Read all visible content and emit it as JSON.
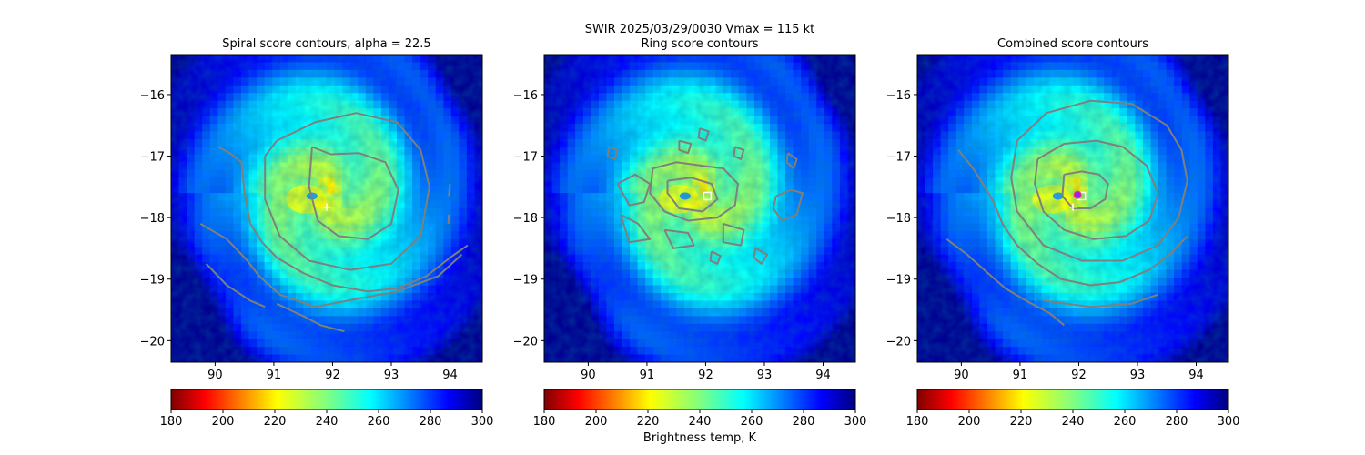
{
  "figure": {
    "suptitle_line1": "SWIR  2025/03/29/0030    Vmax = 115 kt",
    "colorbar_label": "Brightness temp, K"
  },
  "chart_data": [
    {
      "type": "heatmap",
      "title": "Spiral score contours, alpha = 22.5",
      "xlim": [
        89.25,
        94.55
      ],
      "ylim": [
        -20.35,
        -15.35
      ],
      "xticks": [
        90,
        91,
        92,
        93,
        94
      ],
      "yticks": [
        -16,
        -17,
        -18,
        -19,
        -20
      ],
      "colorbar": {
        "cmap": "jet",
        "reversed": true,
        "range": [
          180,
          300
        ],
        "ticks": [
          180,
          200,
          220,
          240,
          260,
          280,
          300
        ]
      },
      "field": {
        "eye_center": [
          91.9,
          -17.65
        ],
        "eye_temp": 225
      },
      "markers": [
        {
          "shape": "plus",
          "x": 91.9,
          "y": -17.83,
          "color": "#ffffff"
        }
      ],
      "contours": [
        [
          [
            91.65,
            -16.85
          ],
          [
            91.97,
            -16.97
          ],
          [
            92.45,
            -16.95
          ],
          [
            92.9,
            -17.1
          ],
          [
            93.12,
            -17.55
          ],
          [
            93.0,
            -18.1
          ],
          [
            92.6,
            -18.35
          ],
          [
            92.1,
            -18.3
          ],
          [
            91.75,
            -18.05
          ],
          [
            91.6,
            -17.5
          ],
          [
            91.65,
            -16.85
          ]
        ],
        [
          [
            90.85,
            -17.0
          ],
          [
            91.05,
            -16.75
          ],
          [
            91.7,
            -16.45
          ],
          [
            92.4,
            -16.3
          ],
          [
            93.1,
            -16.45
          ],
          [
            93.5,
            -16.9
          ],
          [
            93.65,
            -17.5
          ],
          [
            93.5,
            -18.3
          ],
          [
            93.0,
            -18.75
          ],
          [
            92.3,
            -18.85
          ],
          [
            91.6,
            -18.7
          ],
          [
            91.1,
            -18.3
          ],
          [
            90.85,
            -17.7
          ],
          [
            90.85,
            -17.0
          ]
        ],
        [
          [
            90.05,
            -16.85
          ],
          [
            90.25,
            -16.95
          ],
          [
            90.45,
            -17.1
          ],
          [
            90.5,
            -17.6
          ],
          [
            90.6,
            -18.1
          ],
          [
            90.8,
            -18.4
          ],
          [
            91.05,
            -18.65
          ],
          [
            91.5,
            -18.9
          ],
          [
            92.0,
            -19.1
          ],
          [
            92.6,
            -19.2
          ],
          [
            93.1,
            -19.15
          ],
          [
            93.6,
            -18.95
          ],
          [
            94.0,
            -18.65
          ],
          [
            94.3,
            -18.45
          ]
        ],
        [
          [
            89.75,
            -18.1
          ],
          [
            90.2,
            -18.35
          ],
          [
            90.55,
            -18.7
          ],
          [
            90.75,
            -18.95
          ],
          [
            91.1,
            -19.25
          ],
          [
            91.7,
            -19.45
          ],
          [
            93.1,
            -19.2
          ],
          [
            93.8,
            -18.95
          ],
          [
            94.2,
            -18.6
          ]
        ],
        [
          [
            89.85,
            -18.75
          ],
          [
            90.2,
            -19.1
          ],
          [
            90.6,
            -19.35
          ],
          [
            90.85,
            -19.45
          ]
        ],
        [
          [
            91.05,
            -19.4
          ],
          [
            91.5,
            -19.6
          ],
          [
            91.8,
            -19.75
          ],
          [
            92.2,
            -19.85
          ]
        ],
        [
          [
            94.0,
            -17.45
          ],
          [
            93.98,
            -17.65
          ]
        ],
        [
          [
            93.98,
            -17.95
          ],
          [
            93.97,
            -18.1
          ]
        ]
      ]
    },
    {
      "type": "heatmap",
      "title": "Ring score contours",
      "xlim": [
        89.25,
        94.55
      ],
      "ylim": [
        -20.35,
        -15.35
      ],
      "xticks": [
        90,
        91,
        92,
        93,
        94
      ],
      "yticks": [
        -16,
        -17,
        -18,
        -19,
        -20
      ],
      "colorbar": {
        "cmap": "jet",
        "reversed": true,
        "range": [
          180,
          300
        ],
        "ticks": [
          180,
          200,
          220,
          240,
          260,
          280,
          300
        ]
      },
      "field": {
        "eye_center": [
          91.9,
          -17.65
        ],
        "eye_temp": 225
      },
      "markers": [
        {
          "shape": "square",
          "x": 92.03,
          "y": -17.65,
          "color": "#ffffff"
        }
      ],
      "contours": [
        [
          [
            91.1,
            -17.2
          ],
          [
            91.5,
            -17.1
          ],
          [
            91.9,
            -17.15
          ],
          [
            92.3,
            -17.2
          ],
          [
            92.55,
            -17.45
          ],
          [
            92.5,
            -17.8
          ],
          [
            92.2,
            -18.0
          ],
          [
            91.7,
            -18.05
          ],
          [
            91.3,
            -17.9
          ],
          [
            91.05,
            -17.6
          ],
          [
            91.1,
            -17.2
          ]
        ],
        [
          [
            91.35,
            -17.4
          ],
          [
            91.75,
            -17.35
          ],
          [
            92.1,
            -17.45
          ],
          [
            92.2,
            -17.7
          ],
          [
            91.95,
            -17.9
          ],
          [
            91.55,
            -17.85
          ],
          [
            91.35,
            -17.6
          ],
          [
            91.35,
            -17.4
          ]
        ],
        [
          [
            90.5,
            -17.45
          ],
          [
            90.8,
            -17.3
          ],
          [
            91.05,
            -17.45
          ],
          [
            90.95,
            -17.75
          ],
          [
            90.7,
            -17.8
          ],
          [
            90.5,
            -17.45
          ]
        ],
        [
          [
            90.55,
            -17.95
          ],
          [
            90.85,
            -18.1
          ],
          [
            91.05,
            -18.35
          ],
          [
            90.7,
            -18.4
          ],
          [
            90.55,
            -17.95
          ]
        ],
        [
          [
            91.3,
            -18.2
          ],
          [
            91.7,
            -18.25
          ],
          [
            91.8,
            -18.45
          ],
          [
            91.45,
            -18.5
          ],
          [
            91.3,
            -18.2
          ]
        ],
        [
          [
            92.3,
            -18.1
          ],
          [
            92.65,
            -18.2
          ],
          [
            92.6,
            -18.45
          ],
          [
            92.3,
            -18.4
          ],
          [
            92.3,
            -18.1
          ]
        ],
        [
          [
            93.2,
            -17.65
          ],
          [
            93.45,
            -17.55
          ],
          [
            93.65,
            -17.6
          ],
          [
            93.55,
            -17.95
          ],
          [
            93.3,
            -18.05
          ],
          [
            93.15,
            -17.85
          ],
          [
            93.2,
            -17.65
          ]
        ],
        [
          [
            93.4,
            -16.95
          ],
          [
            93.55,
            -17.05
          ],
          [
            93.5,
            -17.2
          ],
          [
            93.38,
            -17.1
          ],
          [
            93.4,
            -16.95
          ]
        ],
        [
          [
            92.5,
            -16.85
          ],
          [
            92.65,
            -16.9
          ],
          [
            92.6,
            -17.05
          ],
          [
            92.48,
            -17.0
          ],
          [
            92.5,
            -16.85
          ]
        ],
        [
          [
            91.55,
            -16.75
          ],
          [
            91.75,
            -16.8
          ],
          [
            91.7,
            -16.95
          ],
          [
            91.55,
            -16.9
          ],
          [
            91.55,
            -16.75
          ]
        ],
        [
          [
            91.9,
            -16.55
          ],
          [
            92.05,
            -16.6
          ],
          [
            92.0,
            -16.75
          ],
          [
            91.88,
            -16.7
          ],
          [
            91.9,
            -16.55
          ]
        ],
        [
          [
            92.85,
            -18.5
          ],
          [
            93.05,
            -18.6
          ],
          [
            92.95,
            -18.75
          ],
          [
            92.82,
            -18.65
          ],
          [
            92.85,
            -18.5
          ]
        ],
        [
          [
            90.35,
            -16.85
          ],
          [
            90.5,
            -16.9
          ],
          [
            90.45,
            -17.05
          ],
          [
            90.33,
            -17.0
          ],
          [
            90.35,
            -16.85
          ]
        ],
        [
          [
            92.1,
            -18.55
          ],
          [
            92.25,
            -18.62
          ],
          [
            92.2,
            -18.75
          ],
          [
            92.08,
            -18.7
          ],
          [
            92.1,
            -18.55
          ]
        ]
      ]
    },
    {
      "type": "heatmap",
      "title": "Combined score contours",
      "xlim": [
        89.25,
        94.55
      ],
      "ylim": [
        -20.35,
        -15.35
      ],
      "xticks": [
        90,
        91,
        92,
        93,
        94
      ],
      "yticks": [
        -16,
        -17,
        -18,
        -19,
        -20
      ],
      "colorbar": {
        "cmap": "jet",
        "reversed": true,
        "range": [
          180,
          300
        ],
        "ticks": [
          180,
          200,
          220,
          240,
          260,
          280,
          300
        ]
      },
      "field": {
        "eye_center": [
          91.9,
          -17.65
        ],
        "eye_temp": 225
      },
      "markers": [
        {
          "shape": "plus",
          "x": 91.9,
          "y": -17.83,
          "color": "#ffffff"
        },
        {
          "shape": "square",
          "x": 92.05,
          "y": -17.65,
          "color": "#ffffff"
        },
        {
          "shape": "circle",
          "x": 91.98,
          "y": -17.63,
          "color": "#a020f0"
        }
      ],
      "contours": [
        [
          [
            91.75,
            -17.3
          ],
          [
            92.05,
            -17.25
          ],
          [
            92.35,
            -17.3
          ],
          [
            92.5,
            -17.45
          ],
          [
            92.45,
            -17.7
          ],
          [
            92.2,
            -17.85
          ],
          [
            91.9,
            -17.85
          ],
          [
            91.72,
            -17.65
          ],
          [
            91.75,
            -17.3
          ]
        ],
        [
          [
            91.3,
            -17.05
          ],
          [
            91.75,
            -16.8
          ],
          [
            92.3,
            -16.75
          ],
          [
            92.75,
            -16.85
          ],
          [
            93.15,
            -17.15
          ],
          [
            93.35,
            -17.6
          ],
          [
            93.2,
            -18.05
          ],
          [
            92.8,
            -18.3
          ],
          [
            92.25,
            -18.35
          ],
          [
            91.75,
            -18.2
          ],
          [
            91.4,
            -17.9
          ],
          [
            91.25,
            -17.45
          ],
          [
            91.3,
            -17.05
          ]
        ],
        [
          [
            90.95,
            -16.75
          ],
          [
            91.45,
            -16.3
          ],
          [
            92.2,
            -16.1
          ],
          [
            92.9,
            -16.15
          ],
          [
            93.5,
            -16.5
          ],
          [
            93.75,
            -16.9
          ],
          [
            93.85,
            -17.4
          ],
          [
            93.7,
            -18.0
          ],
          [
            93.35,
            -18.45
          ],
          [
            92.75,
            -18.7
          ],
          [
            92.05,
            -18.7
          ],
          [
            91.4,
            -18.45
          ],
          [
            90.95,
            -17.9
          ],
          [
            90.85,
            -17.35
          ],
          [
            90.95,
            -16.75
          ]
        ],
        [
          [
            89.95,
            -16.9
          ],
          [
            90.2,
            -17.2
          ],
          [
            90.4,
            -17.5
          ],
          [
            90.55,
            -17.75
          ],
          [
            90.7,
            -18.1
          ],
          [
            90.95,
            -18.45
          ],
          [
            91.3,
            -18.75
          ],
          [
            91.7,
            -19.0
          ],
          [
            92.2,
            -19.1
          ],
          [
            92.7,
            -19.05
          ],
          [
            93.2,
            -18.85
          ],
          [
            93.55,
            -18.6
          ],
          [
            93.85,
            -18.3
          ]
        ],
        [
          [
            89.75,
            -18.35
          ],
          [
            90.1,
            -18.6
          ],
          [
            90.45,
            -18.9
          ],
          [
            90.75,
            -19.15
          ],
          [
            91.1,
            -19.35
          ],
          [
            91.5,
            -19.55
          ],
          [
            91.75,
            -19.75
          ]
        ],
        [
          [
            91.4,
            -19.35
          ],
          [
            92.2,
            -19.45
          ],
          [
            92.9,
            -19.4
          ],
          [
            93.35,
            -19.25
          ]
        ]
      ]
    }
  ]
}
